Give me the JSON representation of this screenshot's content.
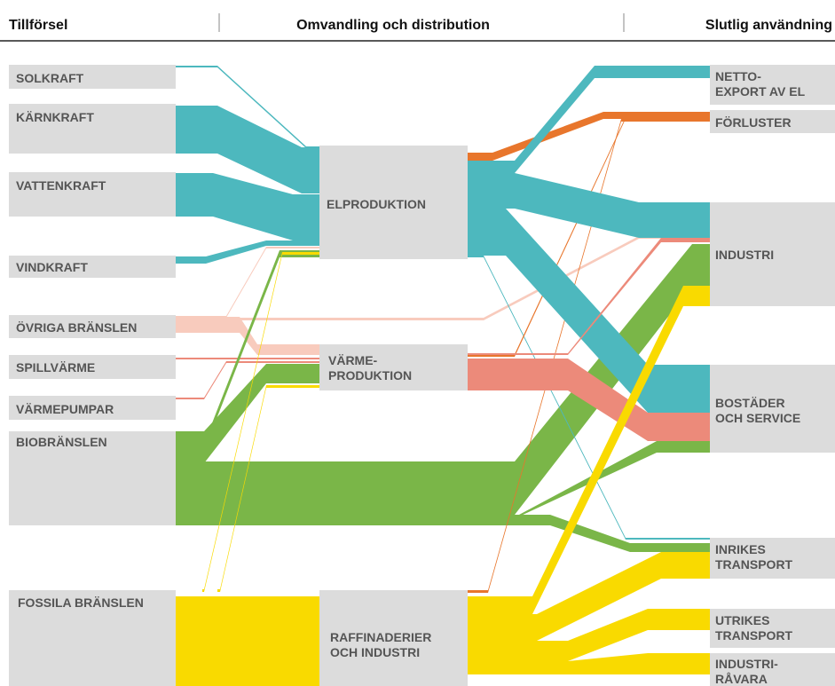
{
  "header": {
    "supply": "Tillförsel",
    "conversion": "Omvandling och distribution",
    "use": "Slutlig användning"
  },
  "nodes": [
    {
      "label": [
        "SOLKRAFT"
      ]
    },
    {
      "label": [
        "KÄRNKRAFT"
      ]
    },
    {
      "label": [
        "VATTENKRAFT"
      ]
    },
    {
      "label": [
        "VINDKRAFT"
      ]
    },
    {
      "label": [
        "ÖVRIGA BRÄNSLEN"
      ]
    },
    {
      "label": [
        "SPILLVÄRME"
      ]
    },
    {
      "label": [
        "VÄRMEPUMPAR"
      ]
    },
    {
      "label": [
        "BIOBRÄNSLEN"
      ]
    },
    {
      "label": [
        "FOSSILA BRÄNSLEN"
      ]
    },
    {
      "label": [
        "ELPRODUKTION"
      ]
    },
    {
      "label": [
        "VÄRME-",
        "PRODUKTION"
      ]
    },
    {
      "label": [
        "RAFFINADERIER",
        "OCH INDUSTRI"
      ]
    },
    {
      "label": [
        "NETTO-",
        "EXPORT AV EL"
      ]
    },
    {
      "label": [
        "FÖRLUSTER"
      ]
    },
    {
      "label": [
        "INDUSTRI"
      ]
    },
    {
      "label": [
        "BOSTÄDER",
        "OCH SERVICE"
      ]
    },
    {
      "label": [
        "INRIKES",
        "TRANSPORT"
      ]
    },
    {
      "label": [
        "UTRIKES",
        "TRANSPORT"
      ]
    },
    {
      "label": [
        "INDUSTRI-",
        "RÅVARA"
      ]
    }
  ]
}
